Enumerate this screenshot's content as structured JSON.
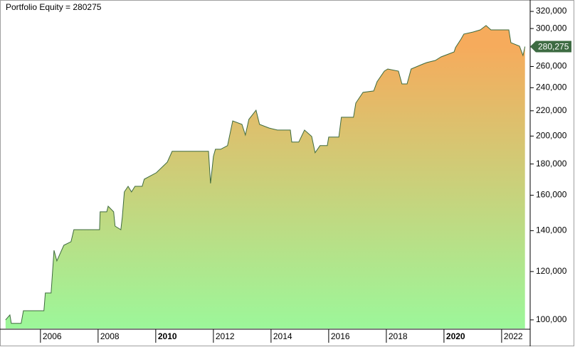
{
  "chart_data": {
    "type": "area",
    "title": "Portfolio Equity = 280275",
    "x": [
      2004.79,
      2004.94,
      2004.99,
      2005.33,
      2005.41,
      2006.12,
      2006.17,
      2006.37,
      2006.47,
      2006.57,
      2006.81,
      2007.06,
      2007.16,
      2008.05,
      2008.07,
      2008.3,
      2008.35,
      2008.54,
      2008.59,
      2008.79,
      2008.84,
      2008.91,
      2009.04,
      2009.16,
      2009.28,
      2009.53,
      2009.6,
      2010.02,
      2010.4,
      2010.57,
      2011.83,
      2011.9,
      2011.95,
      2012.0,
      2012.07,
      2012.25,
      2012.49,
      2012.67,
      2012.99,
      2013.11,
      2013.23,
      2013.48,
      2013.6,
      2013.93,
      2014.22,
      2014.67,
      2014.72,
      2014.96,
      2015.16,
      2015.41,
      2015.53,
      2015.7,
      2015.95,
      2016.0,
      2016.35,
      2016.44,
      2016.86,
      2016.94,
      2017.19,
      2017.56,
      2017.68,
      2017.93,
      2018.05,
      2018.42,
      2018.54,
      2018.72,
      2018.86,
      2019.28,
      2019.41,
      2019.7,
      2019.9,
      2020.35,
      2020.4,
      2020.59,
      2020.69,
      2021.01,
      2021.26,
      2021.46,
      2021.63,
      2022.25,
      2022.32,
      2022.62,
      2022.74,
      2022.81
    ],
    "series": [
      {
        "name": "Portfolio Equity",
        "color": "#3e6b3e",
        "fill_top": "#f6ab5c",
        "fill_bottom": "#9cf79a",
        "values": [
          100000,
          101900,
          98700,
          98700,
          103500,
          103500,
          110700,
          110700,
          130000,
          124900,
          132500,
          134300,
          140500,
          140500,
          150300,
          150300,
          153500,
          150300,
          142400,
          140500,
          147500,
          162000,
          165500,
          162000,
          165500,
          165500,
          170000,
          174200,
          181300,
          188800,
          188800,
          167300,
          175600,
          185300,
          190300,
          190300,
          192900,
          211800,
          209000,
          200800,
          213000,
          220500,
          209000,
          206200,
          204600,
          204600,
          195500,
          195500,
          204600,
          199700,
          187800,
          192900,
          192900,
          199200,
          199200,
          214700,
          214700,
          226500,
          235800,
          237100,
          245500,
          255500,
          257600,
          255500,
          243500,
          243500,
          257600,
          262500,
          263900,
          266000,
          269600,
          274700,
          279200,
          288300,
          293800,
          296100,
          298500,
          303400,
          298500,
          298500,
          284500,
          280700,
          271000,
          280275
        ],
        "last_label": "280,275"
      }
    ],
    "xlim": [
      2004.72,
      2022.99
    ],
    "xticks": [
      2006,
      2008,
      2010,
      2012,
      2014,
      2016,
      2018,
      2020,
      2022
    ],
    "bold_xticks": [
      2010,
      2020
    ],
    "ylim": [
      96800,
      331400
    ],
    "log_y": true,
    "y_axis_side": "right",
    "yticks": [
      {
        "value": 100000,
        "label": "100,000"
      },
      {
        "value": 120000,
        "label": "120,000"
      },
      {
        "value": 140000,
        "label": "140,000"
      },
      {
        "value": 160000,
        "label": "160,000"
      },
      {
        "value": 180000,
        "label": "180,000"
      },
      {
        "value": 200000,
        "label": "200,000"
      },
      {
        "value": 220000,
        "label": "220,000"
      },
      {
        "value": 240000,
        "label": "240,000"
      },
      {
        "value": 260000,
        "label": "260,000"
      },
      {
        "value": 280000,
        "label": "280,000"
      },
      {
        "value": 300000,
        "label": "300,000"
      },
      {
        "value": 320000,
        "label": "320,000"
      }
    ]
  }
}
